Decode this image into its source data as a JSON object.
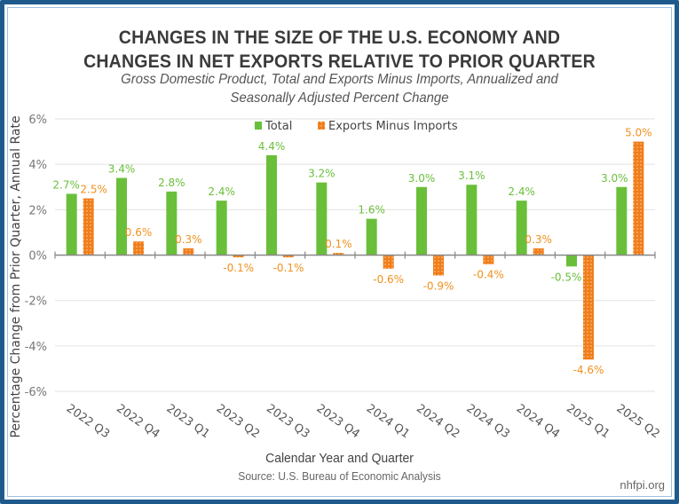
{
  "chart_data": {
    "type": "bar",
    "title": "CHANGES IN THE SIZE OF THE U.S. ECONOMY AND CHANGES IN NET EXPORTS RELATIVE TO PRIOR QUARTER",
    "title_lines": [
      "CHANGES IN THE SIZE OF THE U.S. ECONOMY AND",
      "CHANGES IN NET EXPORTS RELATIVE TO PRIOR QUARTER"
    ],
    "subtitle_lines": [
      "Gross Domestic Product, Total and Exports Minus Imports, Annualized and",
      "Seasonally Adjusted Percent Change"
    ],
    "xlabel": "Calendar Year and Quarter",
    "ylabel": "Percentage Change from Prior Quarter, Annual Rate",
    "ylim": [
      -6,
      6
    ],
    "yticks": [
      6,
      4,
      2,
      0,
      -2,
      -4,
      -6
    ],
    "ytick_labels": [
      "6%",
      "4%",
      "2%",
      "0%",
      "-2%",
      "-4%",
      "-6%"
    ],
    "grid": true,
    "legend_position": "top",
    "categories": [
      "2022 Q3",
      "2022 Q4",
      "2023 Q1",
      "2023 Q2",
      "2023 Q3",
      "2023 Q4",
      "2024 Q1",
      "2024 Q2",
      "2024 Q3",
      "2024 Q4",
      "2025 Q1",
      "2025 Q2"
    ],
    "series": [
      {
        "name": "Total",
        "color": "#6abf3a",
        "label_color": "#6abf3a",
        "values": [
          2.7,
          3.4,
          2.8,
          2.4,
          4.4,
          3.2,
          1.6,
          3.0,
          3.1,
          2.4,
          -0.5,
          3.0
        ],
        "labels": [
          "2.7%",
          "3.4%",
          "2.8%",
          "2.4%",
          "4.4%",
          "3.2%",
          "1.6%",
          "3.0%",
          "3.1%",
          "2.4%",
          "-0.5%",
          "3.0%"
        ]
      },
      {
        "name": "Exports Minus Imports",
        "color": "#f07d1a",
        "label_color": "#f0911e",
        "pattern": "dotted",
        "values": [
          2.5,
          0.6,
          0.3,
          -0.1,
          -0.1,
          0.1,
          -0.6,
          -0.9,
          -0.4,
          0.3,
          -4.6,
          5.0
        ],
        "labels": [
          "2.5%",
          "0.6%",
          "0.3%",
          "-0.1%",
          "-0.1%",
          "0.1%",
          "-0.6%",
          "-0.9%",
          "-0.4%",
          "0.3%",
          "-4.6%",
          "5.0%"
        ]
      }
    ],
    "source": "Source: U.S. Bureau of Economic Analysis",
    "attribution": "nhfpi.org"
  }
}
